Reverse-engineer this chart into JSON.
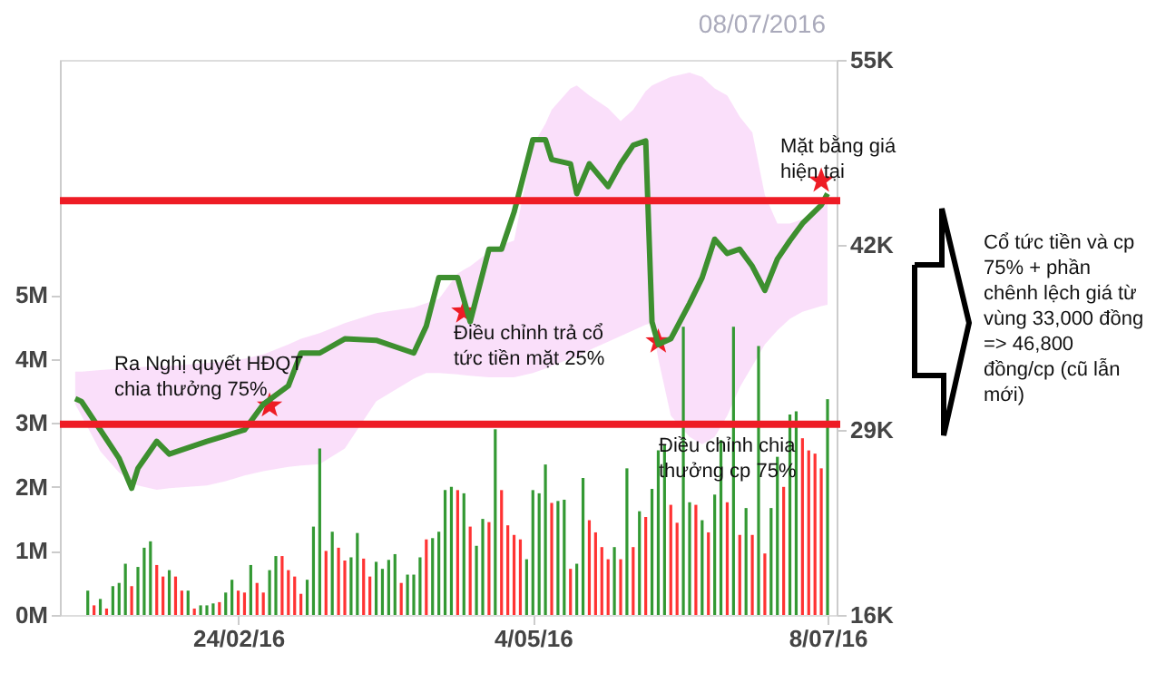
{
  "chart_data": {
    "type": "bar",
    "categories": [
      null,
      null,
      null,
      null,
      null,
      null,
      null,
      null,
      null,
      null,
      null,
      null,
      null,
      null,
      null,
      null,
      null,
      null,
      null,
      null,
      null,
      null,
      null,
      null,
      null,
      null,
      "24/02/16",
      null,
      null,
      null,
      null,
      null,
      null,
      null,
      null,
      null,
      null,
      null,
      null,
      null,
      null,
      null,
      null,
      null,
      null,
      null,
      null,
      null,
      null,
      null,
      null,
      null,
      null,
      null,
      null,
      null,
      null,
      null,
      null,
      null,
      null,
      null,
      null,
      null,
      null,
      null,
      null,
      null,
      null,
      null,
      null,
      null,
      null,
      "4/05/16",
      null,
      null,
      null,
      null,
      null,
      null,
      null,
      null,
      null,
      null,
      null,
      null,
      null,
      null,
      null,
      null,
      null,
      null,
      null,
      null,
      null,
      null,
      null,
      null,
      null,
      null,
      null,
      null,
      null,
      null,
      null,
      null,
      null,
      null,
      null,
      null,
      null,
      null,
      null,
      null,
      null,
      null,
      null,
      null,
      null,
      null,
      "8/07/16"
    ],
    "ylim": [
      0,
      8.67
    ],
    "yticks": [
      {
        "value": 0,
        "label": "0M"
      },
      {
        "value": 1,
        "label": "1M"
      },
      {
        "value": 2,
        "label": "2M"
      },
      {
        "value": 3,
        "label": "3M"
      },
      {
        "value": 4,
        "label": "4M"
      },
      {
        "value": 5,
        "label": "5M"
      }
    ],
    "y2lim": [
      16,
      55
    ],
    "y2ticks": [
      {
        "value": 16,
        "label": "16K"
      },
      {
        "value": 29,
        "label": "29K"
      },
      {
        "value": 42,
        "label": "42K"
      },
      {
        "value": 55,
        "label": "55K"
      }
    ],
    "grid": false,
    "series": [
      {
        "values": [
          null,
          null,
          0.38,
          0.15,
          0.25,
          0.1,
          0.45,
          0.5,
          0.8,
          0.45,
          0.75,
          1.05,
          1.15,
          0.78,
          0.6,
          0.7,
          0.6,
          0.38,
          0.38,
          0.1,
          0.15,
          0.15,
          0.18,
          0.2,
          0.35,
          0.55,
          0.38,
          0.35,
          0.78,
          0.5,
          0.35,
          0.7,
          0.92,
          0.92,
          0.7,
          0.6,
          0.33,
          0.55,
          1.38,
          2.6,
          1.0,
          1.3,
          1.05,
          0.85,
          0.9,
          1.28,
          0.88,
          0.6,
          0.83,
          0.72,
          0.86,
          0.95,
          0.5,
          0.63,
          0.63,
          0.9,
          1.18,
          1.2,
          1.3,
          1.95,
          2.0,
          1.95,
          1.9,
          1.38,
          1.08,
          1.5,
          1.45,
          2.9,
          1.95,
          1.4,
          1.25,
          1.18,
          0.87,
          1.95,
          1.9,
          2.35,
          1.75,
          1.78,
          1.8,
          0.72,
          0.8,
          2.14,
          1.48,
          1.29,
          1.06,
          0.87,
          1.06,
          0.87,
          2.29,
          1.06,
          1.62,
          1.53,
          1.97,
          2.57,
          2.66,
          1.72,
          1.44,
          4.5,
          1.76,
          1.72,
          1.48,
          1.29,
          1.88,
          2.73,
          1.76,
          4.5,
          1.25,
          1.67,
          1.25,
          4.2,
          0.96,
          1.67,
          2.47,
          2.0,
          3.13,
          3.18,
          2.76,
          2.57,
          2.52,
          2.29,
          3.37
        ],
        "colors": [
          null,
          null,
          "#339933",
          "#ff3333",
          "#339933",
          "#ff3333",
          "#339933",
          "#339933",
          "#339933",
          "#ff3333",
          "#339933",
          "#339933",
          "#339933",
          "#ff3333",
          "#ff3333",
          "#339933",
          "#ff3333",
          "#ff3333",
          "#339933",
          "#ff3333",
          "#339933",
          "#339933",
          "#339933",
          "#ff3333",
          "#339933",
          "#339933",
          "#ff3333",
          "#ff3333",
          "#339933",
          "#ff3333",
          "#ff3333",
          "#339933",
          "#339933",
          "#ff3333",
          "#ff3333",
          "#ff3333",
          "#ff3333",
          "#339933",
          "#339933",
          "#339933",
          "#ff3333",
          "#339933",
          "#ff3333",
          "#ff3333",
          "#339933",
          "#339933",
          "#ff3333",
          "#ff3333",
          "#339933",
          "#339933",
          "#339933",
          "#339933",
          "#ff3333",
          "#339933",
          "#339933",
          "#339933",
          "#ff3333",
          "#339933",
          "#339933",
          "#339933",
          "#339933",
          "#ff3333",
          "#339933",
          "#ff3333",
          "#339933",
          "#339933",
          "#ff3333",
          "#339933",
          "#ff3333",
          "#ff3333",
          "#ff3333",
          "#ff3333",
          "#339933",
          "#339933",
          "#339933",
          "#339933",
          "#ff3333",
          "#339933",
          "#339933",
          "#ff3333",
          "#339933",
          "#339933",
          "#ff3333",
          "#ff3333",
          "#ff3333",
          "#ff3333",
          "#339933",
          "#ff3333",
          "#339933",
          "#ff3333",
          "#339933",
          "#ff3333",
          "#339933",
          "#339933",
          "#339933",
          "#ff3333",
          "#ff3333",
          "#339933",
          "#339933",
          "#ff3333",
          "#339933",
          "#ff3333",
          "#339933",
          "#339933",
          "#ff3333",
          "#339933",
          "#ff3333",
          "#339933",
          "#ff3333",
          "#339933",
          "#ff3333",
          "#339933",
          "#339933",
          "#ff3333",
          "#339933",
          "#339933",
          "#ff3333",
          "#ff3333",
          "#ff3333",
          "#ff3333",
          "#339933"
        ]
      },
      {
        "type": "scatter",
        "axis": "y2",
        "color": "#ee1c25",
        "marker": "star",
        "values": [
          null,
          null,
          null,
          null,
          null,
          null,
          null,
          null,
          null,
          null,
          null,
          null,
          null,
          null,
          null,
          null,
          null,
          null,
          null,
          null,
          null,
          null,
          null,
          null,
          null,
          null,
          null,
          null,
          null,
          null,
          null,
          30.7,
          null,
          null,
          null,
          null,
          null,
          null,
          null,
          null,
          null,
          null,
          null,
          null,
          null,
          null,
          null,
          null,
          null,
          null,
          null,
          null,
          null,
          null,
          null,
          null,
          null,
          null,
          null,
          null,
          null,
          null,
          37.3,
          null,
          null,
          null,
          null,
          null,
          null,
          null,
          null,
          null,
          null,
          null,
          null,
          null,
          null,
          null,
          null,
          null,
          null,
          null,
          null,
          null,
          null,
          null,
          null,
          null,
          null,
          null,
          null,
          null,
          null,
          35.2,
          null,
          null,
          null,
          null,
          null,
          null,
          null,
          null,
          null,
          null,
          null,
          null,
          null,
          null,
          null,
          null,
          null,
          null,
          null,
          null,
          null,
          null,
          null,
          null,
          null,
          46.5,
          null
        ]
      },
      {
        "type": "line",
        "axis": "y2",
        "color": "#3d8f2f",
        "values": [
          31.2,
          31.0,
          null,
          null,
          29.0,
          null,
          null,
          27.0,
          null,
          24.9,
          26.3,
          null,
          null,
          28.2,
          null,
          27.3,
          null,
          null,
          null,
          null,
          null,
          28.2,
          null,
          null,
          28.6,
          null,
          null,
          29.0,
          null,
          null,
          30.8,
          null,
          null,
          null,
          32.1,
          null,
          34.4,
          null,
          null,
          34.4,
          null,
          null,
          null,
          35.4,
          null,
          null,
          null,
          null,
          35.3,
          null,
          null,
          null,
          null,
          null,
          34.4,
          null,
          36.3,
          null,
          39.7,
          null,
          null,
          39.7,
          null,
          36.6,
          null,
          null,
          41.7,
          null,
          41.7,
          null,
          44.3,
          null,
          null,
          49.4,
          null,
          49.4,
          48.0,
          null,
          null,
          47.7,
          45.6,
          null,
          47.7,
          null,
          null,
          46.1,
          null,
          47.7,
          null,
          49.0,
          null,
          49.3,
          36.6,
          35.0,
          null,
          35.4,
          null,
          null,
          37.9,
          null,
          39.7,
          null,
          42.4,
          null,
          41.4,
          null,
          41.7,
          null,
          40.5,
          null,
          38.8,
          null,
          41.0,
          null,
          42.3,
          null,
          43.5,
          null,
          null,
          44.8,
          45.6
        ],
        "lower": [
          30.8,
          30.0,
          null,
          null,
          27.5,
          null,
          null,
          26.0,
          null,
          25.4,
          25.1,
          null,
          null,
          24.8,
          null,
          24.9,
          null,
          null,
          null,
          null,
          null,
          25.1,
          null,
          null,
          25.4,
          null,
          null,
          25.8,
          null,
          null,
          26.1,
          null,
          null,
          null,
          26.4,
          null,
          26.5,
          null,
          null,
          26.6,
          null,
          null,
          null,
          27.7,
          null,
          null,
          null,
          null,
          31.0,
          null,
          null,
          null,
          null,
          null,
          32.6,
          null,
          33.0,
          null,
          33.0,
          null,
          null,
          32.9,
          null,
          32.8,
          null,
          null,
          32.7,
          null,
          32.7,
          null,
          32.7,
          null,
          null,
          33.0,
          null,
          33.3,
          33.5,
          null,
          null,
          34.0,
          34.1,
          null,
          34.6,
          null,
          null,
          35.2,
          null,
          35.6,
          null,
          36.0,
          null,
          36.4,
          36.5,
          34.0,
          null,
          30.0,
          null,
          null,
          28.5,
          null,
          28.0,
          null,
          28.5,
          null,
          30.0,
          null,
          32.0,
          null,
          33.5,
          null,
          35.0,
          null,
          36.0,
          null,
          36.8,
          null,
          37.3,
          null,
          null,
          37.7,
          37.8
        ],
        "upper": [
          33.1,
          33.1,
          null,
          null,
          33.2,
          null,
          null,
          33.3,
          null,
          33.4,
          33.4,
          null,
          null,
          33.5,
          null,
          33.5,
          null,
          null,
          null,
          null,
          null,
          33.7,
          null,
          null,
          33.8,
          null,
          null,
          34.0,
          null,
          null,
          34.3,
          null,
          null,
          null,
          35.0,
          null,
          35.4,
          null,
          null,
          35.8,
          null,
          null,
          null,
          36.5,
          null,
          null,
          null,
          null,
          37.2,
          null,
          null,
          null,
          null,
          null,
          37.6,
          null,
          37.9,
          null,
          38.2,
          null,
          null,
          40.0,
          null,
          40.5,
          null,
          null,
          41.5,
          null,
          42.0,
          null,
          42.3,
          null,
          null,
          49.0,
          null,
          50.5,
          51.5,
          null,
          null,
          53.0,
          53.2,
          null,
          52.5,
          null,
          null,
          51.6,
          null,
          50.7,
          null,
          51.5,
          null,
          52.8,
          53.2,
          53.4,
          null,
          53.8,
          null,
          null,
          54.1,
          null,
          53.8,
          null,
          53.0,
          null,
          52.5,
          null,
          51.0,
          null,
          49.9,
          null,
          45.5,
          null,
          43.5,
          null,
          43.5,
          null,
          43.8,
          null,
          null,
          44.8,
          45.0
        ]
      }
    ],
    "ref_lines": [
      {
        "axis": "y2",
        "value": 45.1,
        "color": "#ee1c25"
      },
      {
        "axis": "y2",
        "value": 29.4,
        "color": "#ee1c25"
      }
    ],
    "annotations": [
      "Ra Nghị quyết HĐQT\nchia thưởng 75%",
      "Điều chỉnh trả cổ\ntức tiền mặt 25%",
      "Điều chỉnh chia\nthưởng cp 75%",
      "Mặt bằng giá\nhiện tại",
      "Cổ tức tiền và cp\n75% + phần\nchênh lệch giá từ\nvùng 33,000 đồng\n=> 46,800\nđồng/cp (cũ lẫn\nmới)",
      "08/07/2016"
    ]
  }
}
